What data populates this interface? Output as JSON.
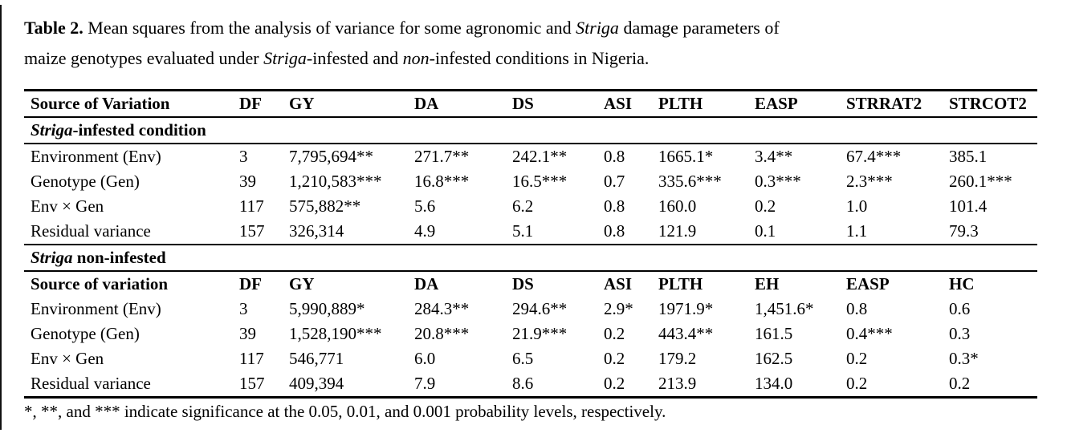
{
  "page": {
    "background": "#ffffff",
    "text_color": "#000000",
    "rule_color": "#000000"
  },
  "title": {
    "label": "Table 2.",
    "seg_1": " Mean squares from the analysis of variance for some agronomic and ",
    "striga_1": "Striga",
    "seg_2": " damage parameters of",
    "seg_3": "maize genotypes evaluated under ",
    "striga_2": "Striga",
    "seg_4": "-infested and ",
    "non": "non",
    "seg_5": "-infested conditions in Nigeria."
  },
  "table": {
    "header_infested": [
      "Source of Variation",
      "DF",
      "GY",
      "DA",
      "DS",
      "ASI",
      "PLTH",
      "EASP",
      "STRRAT2",
      "STRCOT2"
    ],
    "section_infested": {
      "label_italic": "Striga",
      "label_rest": "-infested condition"
    },
    "rows_infested": [
      [
        "Environment (Env)",
        "3",
        "7,795,694**",
        "271.7**",
        "242.1**",
        "0.8",
        "1665.1*",
        "3.4**",
        "67.4***",
        "385.1"
      ],
      [
        "Genotype (Gen)",
        "39",
        "1,210,583***",
        "16.8***",
        "16.5***",
        "0.7",
        "335.6***",
        "0.3***",
        "2.3***",
        "260.1***"
      ],
      [
        "Env × Gen",
        "117",
        "575,882**",
        "5.6",
        "6.2",
        "0.8",
        "160.0",
        "0.2",
        "1.0",
        "101.4"
      ],
      [
        "Residual variance",
        "157",
        "326,314",
        "4.9",
        "5.1",
        "0.8",
        "121.9",
        "0.1",
        "1.1",
        "79.3"
      ]
    ],
    "section_noninfested": {
      "label_italic": "Striga",
      "label_rest": " non-infested"
    },
    "header_noninfested": [
      "Source of variation",
      "DF",
      "GY",
      "DA",
      "DS",
      "ASI",
      "PLTH",
      "EH",
      "EASP",
      "HC"
    ],
    "rows_noninfested": [
      [
        "Environment (Env)",
        "3",
        "5,990,889*",
        "284.3**",
        "294.6**",
        "2.9*",
        "1971.9*",
        "1,451.6*",
        "0.8",
        "0.6"
      ],
      [
        "Genotype (Gen)",
        "39",
        "1,528,190***",
        "20.8***",
        "21.9***",
        "0.2",
        "443.4**",
        "161.5",
        "0.4***",
        "0.3"
      ],
      [
        "Env × Gen",
        "117",
        "546,771",
        "6.0",
        "6.5",
        "0.2",
        "179.2",
        "162.5",
        "0.2",
        "0.3*"
      ],
      [
        "Residual variance",
        "157",
        "409,394",
        "7.9",
        "8.6",
        "0.2",
        "213.9",
        "134.0",
        "0.2",
        "0.2"
      ]
    ],
    "footnote": "*, **, and *** indicate significance at the 0.05, 0.01, and 0.001 probability levels, respectively."
  }
}
